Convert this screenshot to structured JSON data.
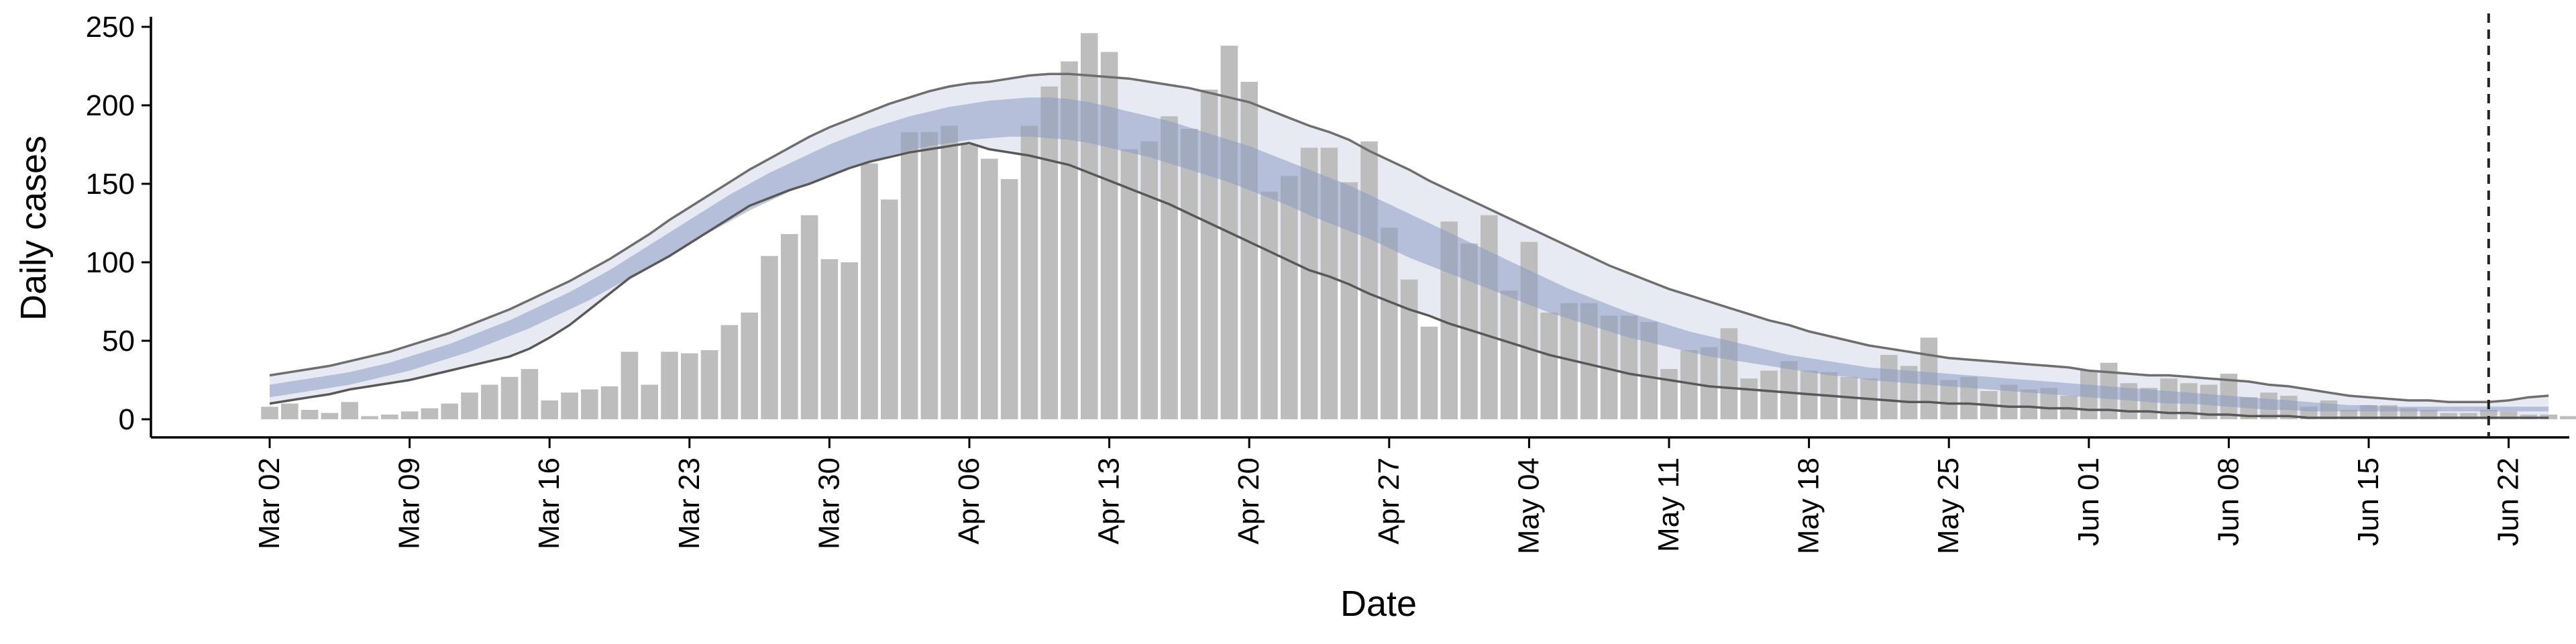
{
  "chart_data": {
    "type": "bar",
    "xlabel": "Date",
    "ylabel": "Daily cases",
    "ylim": [
      -10,
      260
    ],
    "y_ticks": [
      0,
      50,
      100,
      150,
      200,
      250
    ],
    "x_ticks": [
      "Mar 02",
      "Mar 09",
      "Mar 16",
      "Mar 23",
      "Mar 30",
      "Apr 06",
      "Apr 13",
      "Apr 20",
      "Apr 27",
      "May 04",
      "May 11",
      "May 18",
      "May 25",
      "Jun 01",
      "Jun 08",
      "Jun 15",
      "Jun 22"
    ],
    "x_start_date": "2020-03-02",
    "dashed_line_date": "2020-06-21",
    "bar_color": "#bdbdbd",
    "series": [
      {
        "type": "bar",
        "values": [
          8,
          10,
          6,
          4,
          11,
          2,
          3,
          5,
          7,
          10,
          17,
          22,
          27,
          32,
          12,
          17,
          19,
          21,
          43,
          22,
          43,
          42,
          44,
          60,
          68,
          104,
          118,
          130,
          102,
          100,
          163,
          140,
          183,
          183,
          187,
          175,
          166,
          153,
          187,
          212,
          228,
          246,
          234,
          172,
          177,
          193,
          185,
          210,
          238,
          215,
          145,
          155,
          173,
          173,
          151,
          177,
          122,
          89,
          59,
          126,
          112,
          130,
          82,
          113,
          68,
          74,
          74,
          66,
          66,
          62,
          32,
          44,
          46,
          58,
          26,
          31,
          37,
          31,
          30,
          27,
          26,
          41,
          34,
          52,
          25,
          27,
          18,
          22,
          19,
          20,
          15,
          31,
          36,
          23,
          20,
          26,
          23,
          22,
          29,
          14,
          17,
          15,
          8,
          12,
          6,
          9,
          9,
          7,
          6,
          4,
          4,
          6,
          5,
          3,
          3,
          2,
          2,
          1,
          0
        ]
      }
    ],
    "model": {
      "outer_upper": [
        28,
        30,
        32,
        34,
        37,
        40,
        43,
        47,
        51,
        55,
        60,
        65,
        70,
        76,
        82,
        88,
        95,
        102,
        110,
        118,
        127,
        135,
        143,
        151,
        159,
        166,
        173,
        180,
        186,
        191,
        196,
        201,
        205,
        209,
        212,
        214,
        215,
        217,
        219,
        220,
        220,
        219,
        218,
        217,
        215,
        213,
        211,
        208,
        205,
        202,
        197,
        192,
        187,
        183,
        178,
        171,
        165,
        159,
        152,
        146,
        140,
        134,
        128,
        122,
        116,
        110,
        104,
        98,
        93,
        88,
        83,
        79,
        75,
        71,
        67,
        63,
        60,
        56,
        53,
        50,
        47,
        45,
        43,
        41,
        39,
        38,
        37,
        36,
        35,
        34,
        33,
        31,
        30,
        29,
        28,
        28,
        27,
        26,
        25,
        24,
        22,
        21,
        19,
        17,
        15,
        14,
        13,
        12,
        12,
        11,
        11,
        11,
        12,
        14,
        15
      ],
      "inner_upper": [
        22,
        24,
        26,
        28,
        30,
        33,
        36,
        40,
        44,
        48,
        53,
        58,
        63,
        69,
        75,
        81,
        88,
        95,
        103,
        111,
        119,
        127,
        135,
        143,
        150,
        157,
        163,
        169,
        175,
        180,
        185,
        189,
        193,
        196,
        199,
        201,
        203,
        204,
        205,
        205,
        204,
        202,
        199,
        196,
        193,
        190,
        186,
        182,
        178,
        174,
        169,
        164,
        159,
        154,
        149,
        143,
        137,
        131,
        125,
        119,
        113,
        107,
        101,
        95,
        89,
        83,
        78,
        73,
        68,
        64,
        60,
        56,
        53,
        50,
        47,
        44,
        41,
        39,
        37,
        35,
        33,
        32,
        31,
        30,
        29,
        28,
        27,
        26,
        25,
        24,
        23,
        22,
        21,
        20,
        19,
        18,
        17,
        16,
        15,
        14,
        13,
        12,
        11,
        10,
        9,
        9,
        8,
        8,
        8,
        8,
        8,
        8,
        8,
        8,
        8
      ],
      "inner_lower": [
        14,
        16,
        18,
        20,
        22,
        25,
        28,
        31,
        35,
        39,
        43,
        48,
        53,
        58,
        64,
        70,
        76,
        83,
        90,
        97,
        104,
        112,
        119,
        126,
        133,
        139,
        145,
        150,
        155,
        160,
        164,
        168,
        171,
        174,
        176,
        178,
        179,
        180,
        180,
        179,
        178,
        176,
        173,
        170,
        167,
        163,
        159,
        155,
        151,
        146,
        141,
        136,
        130,
        125,
        120,
        115,
        109,
        103,
        98,
        93,
        88,
        83,
        78,
        73,
        68,
        64,
        60,
        56,
        52,
        49,
        46,
        43,
        40,
        38,
        36,
        34,
        32,
        30,
        28,
        27,
        25,
        24,
        23,
        22,
        21,
        20,
        19,
        18,
        17,
        16,
        15,
        14,
        13,
        12,
        11,
        10,
        10,
        9,
        8,
        7,
        6,
        6,
        5,
        5,
        5,
        5,
        5,
        5,
        5,
        5,
        5,
        5,
        5,
        5,
        5
      ],
      "outer_lower": [
        10,
        12,
        14,
        16,
        19,
        21,
        23,
        25,
        28,
        31,
        34,
        37,
        40,
        45,
        52,
        60,
        70,
        80,
        90,
        97,
        104,
        112,
        120,
        128,
        136,
        141,
        146,
        150,
        155,
        160,
        164,
        167,
        170,
        172,
        174,
        176,
        172,
        170,
        168,
        165,
        162,
        157,
        152,
        147,
        142,
        137,
        131,
        125,
        119,
        113,
        107,
        101,
        95,
        91,
        86,
        80,
        75,
        70,
        66,
        61,
        57,
        53,
        49,
        45,
        41,
        38,
        35,
        32,
        29,
        27,
        25,
        23,
        21,
        20,
        19,
        18,
        17,
        16,
        15,
        14,
        13,
        12,
        11,
        11,
        10,
        10,
        9,
        8,
        8,
        7,
        7,
        6,
        6,
        5,
        5,
        4,
        4,
        3,
        3,
        2,
        2,
        2,
        1,
        1,
        1,
        1,
        1,
        1,
        1,
        1,
        1,
        1,
        1,
        1,
        1
      ]
    }
  }
}
